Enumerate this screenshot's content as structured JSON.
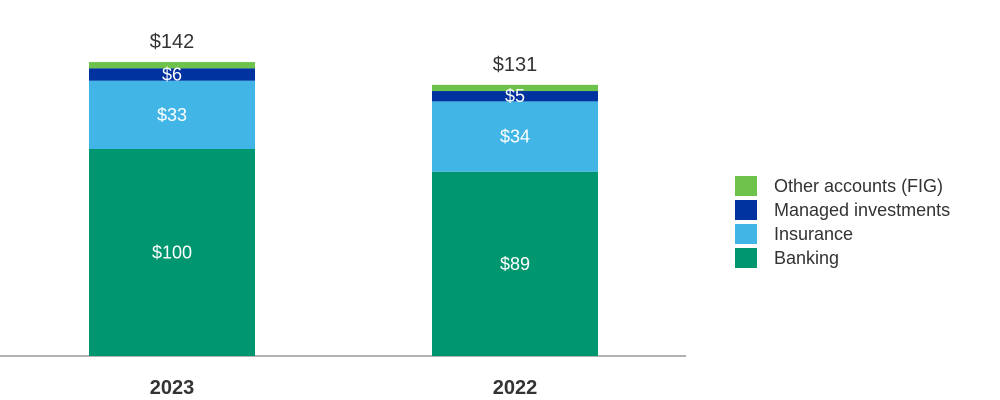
{
  "chart_data": {
    "type": "bar",
    "stacked": true,
    "categories": [
      "2023",
      "2022"
    ],
    "series": [
      {
        "name": "Banking",
        "values": [
          100,
          89
        ],
        "labels": [
          "$100",
          "$89"
        ],
        "color": "#009670"
      },
      {
        "name": "Insurance",
        "values": [
          33,
          34
        ],
        "labels": [
          "$33",
          "$34"
        ],
        "color": "#41b6e6"
      },
      {
        "name": "Managed investments",
        "values": [
          6,
          5
        ],
        "labels": [
          "$6",
          "$5"
        ],
        "color": "#0033a0"
      },
      {
        "name": "Other accounts (FIG)",
        "values": [
          3,
          3
        ],
        "labels": [
          "",
          ""
        ],
        "color": "#6cc24a"
      }
    ],
    "totals": [
      "$142",
      "$131"
    ],
    "legend": {
      "position": "right",
      "items": [
        "Other accounts (FIG)",
        "Managed investments",
        "Insurance",
        "Banking"
      ]
    },
    "axis_color": "#999999"
  }
}
